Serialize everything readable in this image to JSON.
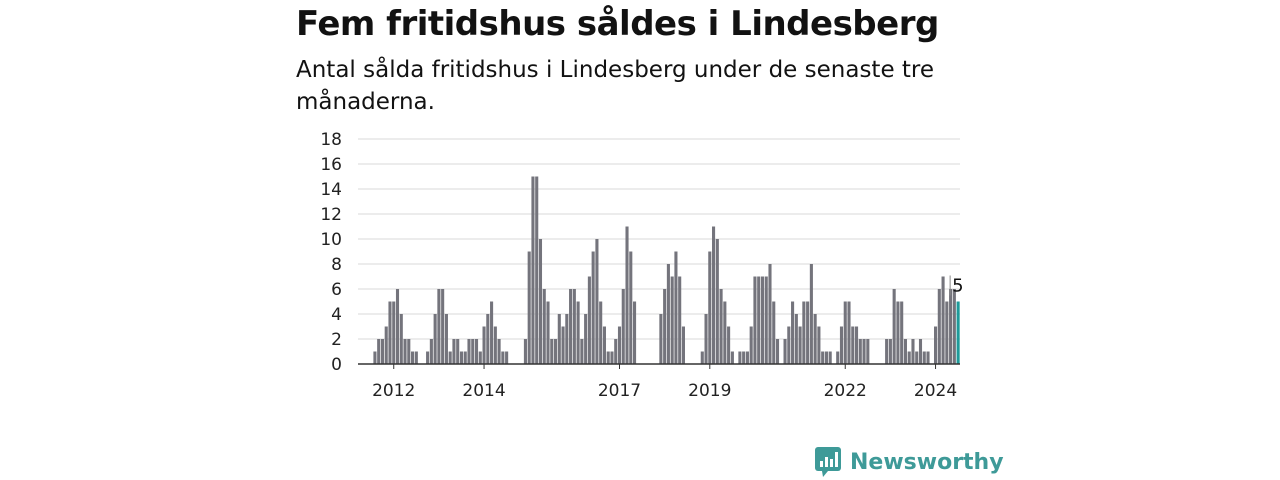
{
  "title": "Fem fritidshus såldes i Lindesberg",
  "subtitle": "Antal sålda fritidshus i Lindesberg under de senaste tre månaderna.",
  "brand": {
    "name": "Newsworthy",
    "color": "#3e9a98"
  },
  "colors": {
    "bar": "#74747c",
    "highlight": "#1e9b9a",
    "grid": "#d9d9d9",
    "axis": "#333333"
  },
  "chart_data": {
    "type": "bar",
    "ylim": [
      0,
      18
    ],
    "yticks": [
      0,
      2,
      4,
      6,
      8,
      10,
      12,
      14,
      16,
      18
    ],
    "x_start": "2011-09",
    "x_end": "2025-02",
    "xticks": [
      "2012",
      "2014",
      "2017",
      "2019",
      "2022",
      "2024"
    ],
    "values": [
      0,
      0,
      0,
      0,
      1,
      2,
      2,
      3,
      5,
      5,
      6,
      4,
      2,
      2,
      1,
      1,
      0,
      0,
      1,
      2,
      4,
      6,
      6,
      4,
      1,
      2,
      2,
      1,
      1,
      2,
      2,
      2,
      1,
      3,
      4,
      5,
      3,
      2,
      1,
      1,
      0,
      0,
      0,
      0,
      2,
      9,
      15,
      15,
      10,
      6,
      5,
      2,
      2,
      4,
      3,
      4,
      6,
      6,
      5,
      2,
      4,
      7,
      9,
      10,
      5,
      3,
      1,
      1,
      2,
      3,
      6,
      11,
      9,
      5,
      0,
      0,
      0,
      0,
      0,
      0,
      4,
      6,
      8,
      7,
      9,
      7,
      3,
      0,
      0,
      0,
      0,
      1,
      4,
      9,
      11,
      10,
      6,
      5,
      3,
      1,
      0,
      1,
      1,
      1,
      3,
      7,
      7,
      7,
      7,
      8,
      5,
      2,
      0,
      2,
      3,
      5,
      4,
      3,
      5,
      5,
      8,
      4,
      3,
      1,
      1,
      1,
      0,
      1,
      3,
      5,
      5,
      3,
      3,
      2,
      2,
      2,
      0,
      0,
      0,
      0,
      2,
      2,
      6,
      5,
      5,
      2,
      1,
      2,
      1,
      2,
      1,
      1,
      0,
      3,
      6,
      7,
      5,
      6,
      6,
      5
    ],
    "highlight_last": true,
    "annotation": "5"
  }
}
